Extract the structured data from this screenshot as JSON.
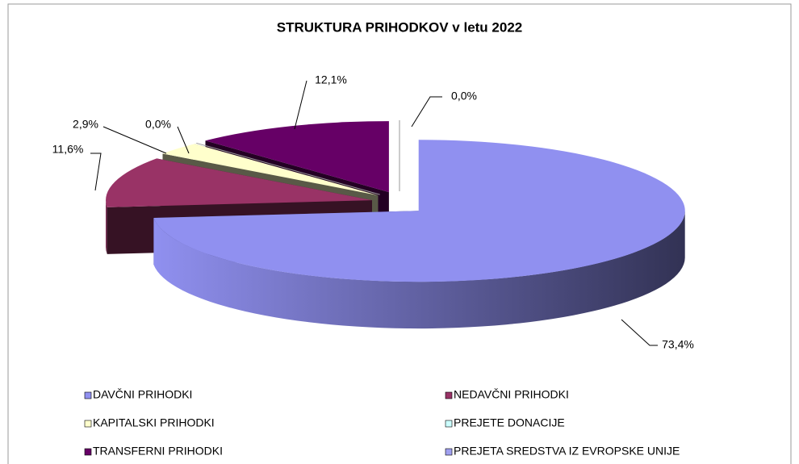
{
  "chart_data": {
    "type": "pie3d",
    "title": "STRUKTURA PRIHODKOV v letu 2022",
    "categories": [
      "DAVČNI PRIHODKI",
      "NEDAVČNI PRIHODKI",
      "KAPITALSKI PRIHODKI",
      "PREJETE DONACIJE",
      "TRANSFERNI PRIHODKI",
      "PREJETA SREDSTVA IZ EVROPSKE UNIJE"
    ],
    "values": [
      73.4,
      11.6,
      2.9,
      0.0,
      12.1,
      0.0
    ],
    "value_labels": [
      "73,4%",
      "11,6%",
      "2,9%",
      "0,0%",
      "12,1%",
      "0,0%"
    ],
    "colors": [
      "#9090f0",
      "#993366",
      "#ffffcc",
      "#ccffff",
      "#660066",
      "#a0a0f0"
    ],
    "legend": "bottom"
  }
}
